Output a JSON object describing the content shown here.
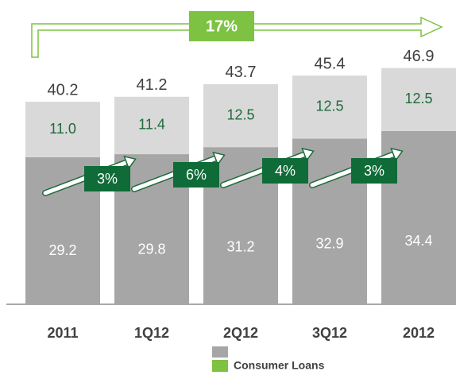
{
  "chart_data": {
    "type": "stacked_bar",
    "categories": [
      "2011",
      "1Q12",
      "2Q12",
      "3Q12",
      "2012"
    ],
    "series": [
      {
        "color": "#a6a6a6",
        "label_color": "#ffffff",
        "values": [
          29.2,
          29.8,
          31.2,
          32.9,
          34.4
        ]
      },
      {
        "name": "Consumer Loans",
        "color": "#d9d9d9",
        "legend_color": "#7dc242",
        "label_color": "#1e6b3a",
        "values": [
          11.0,
          11.4,
          12.5,
          12.5,
          12.5
        ],
        "value_labels": [
          "11.0",
          "11.4",
          "12.5",
          "12.5",
          "12.5"
        ]
      }
    ],
    "totals": [
      40.2,
      41.2,
      43.7,
      45.4,
      46.9
    ],
    "ylim": [
      0,
      50
    ],
    "annotations": {
      "growth": [
        "3%",
        "6%",
        "4%",
        "3%"
      ],
      "total_growth": "17%"
    }
  }
}
